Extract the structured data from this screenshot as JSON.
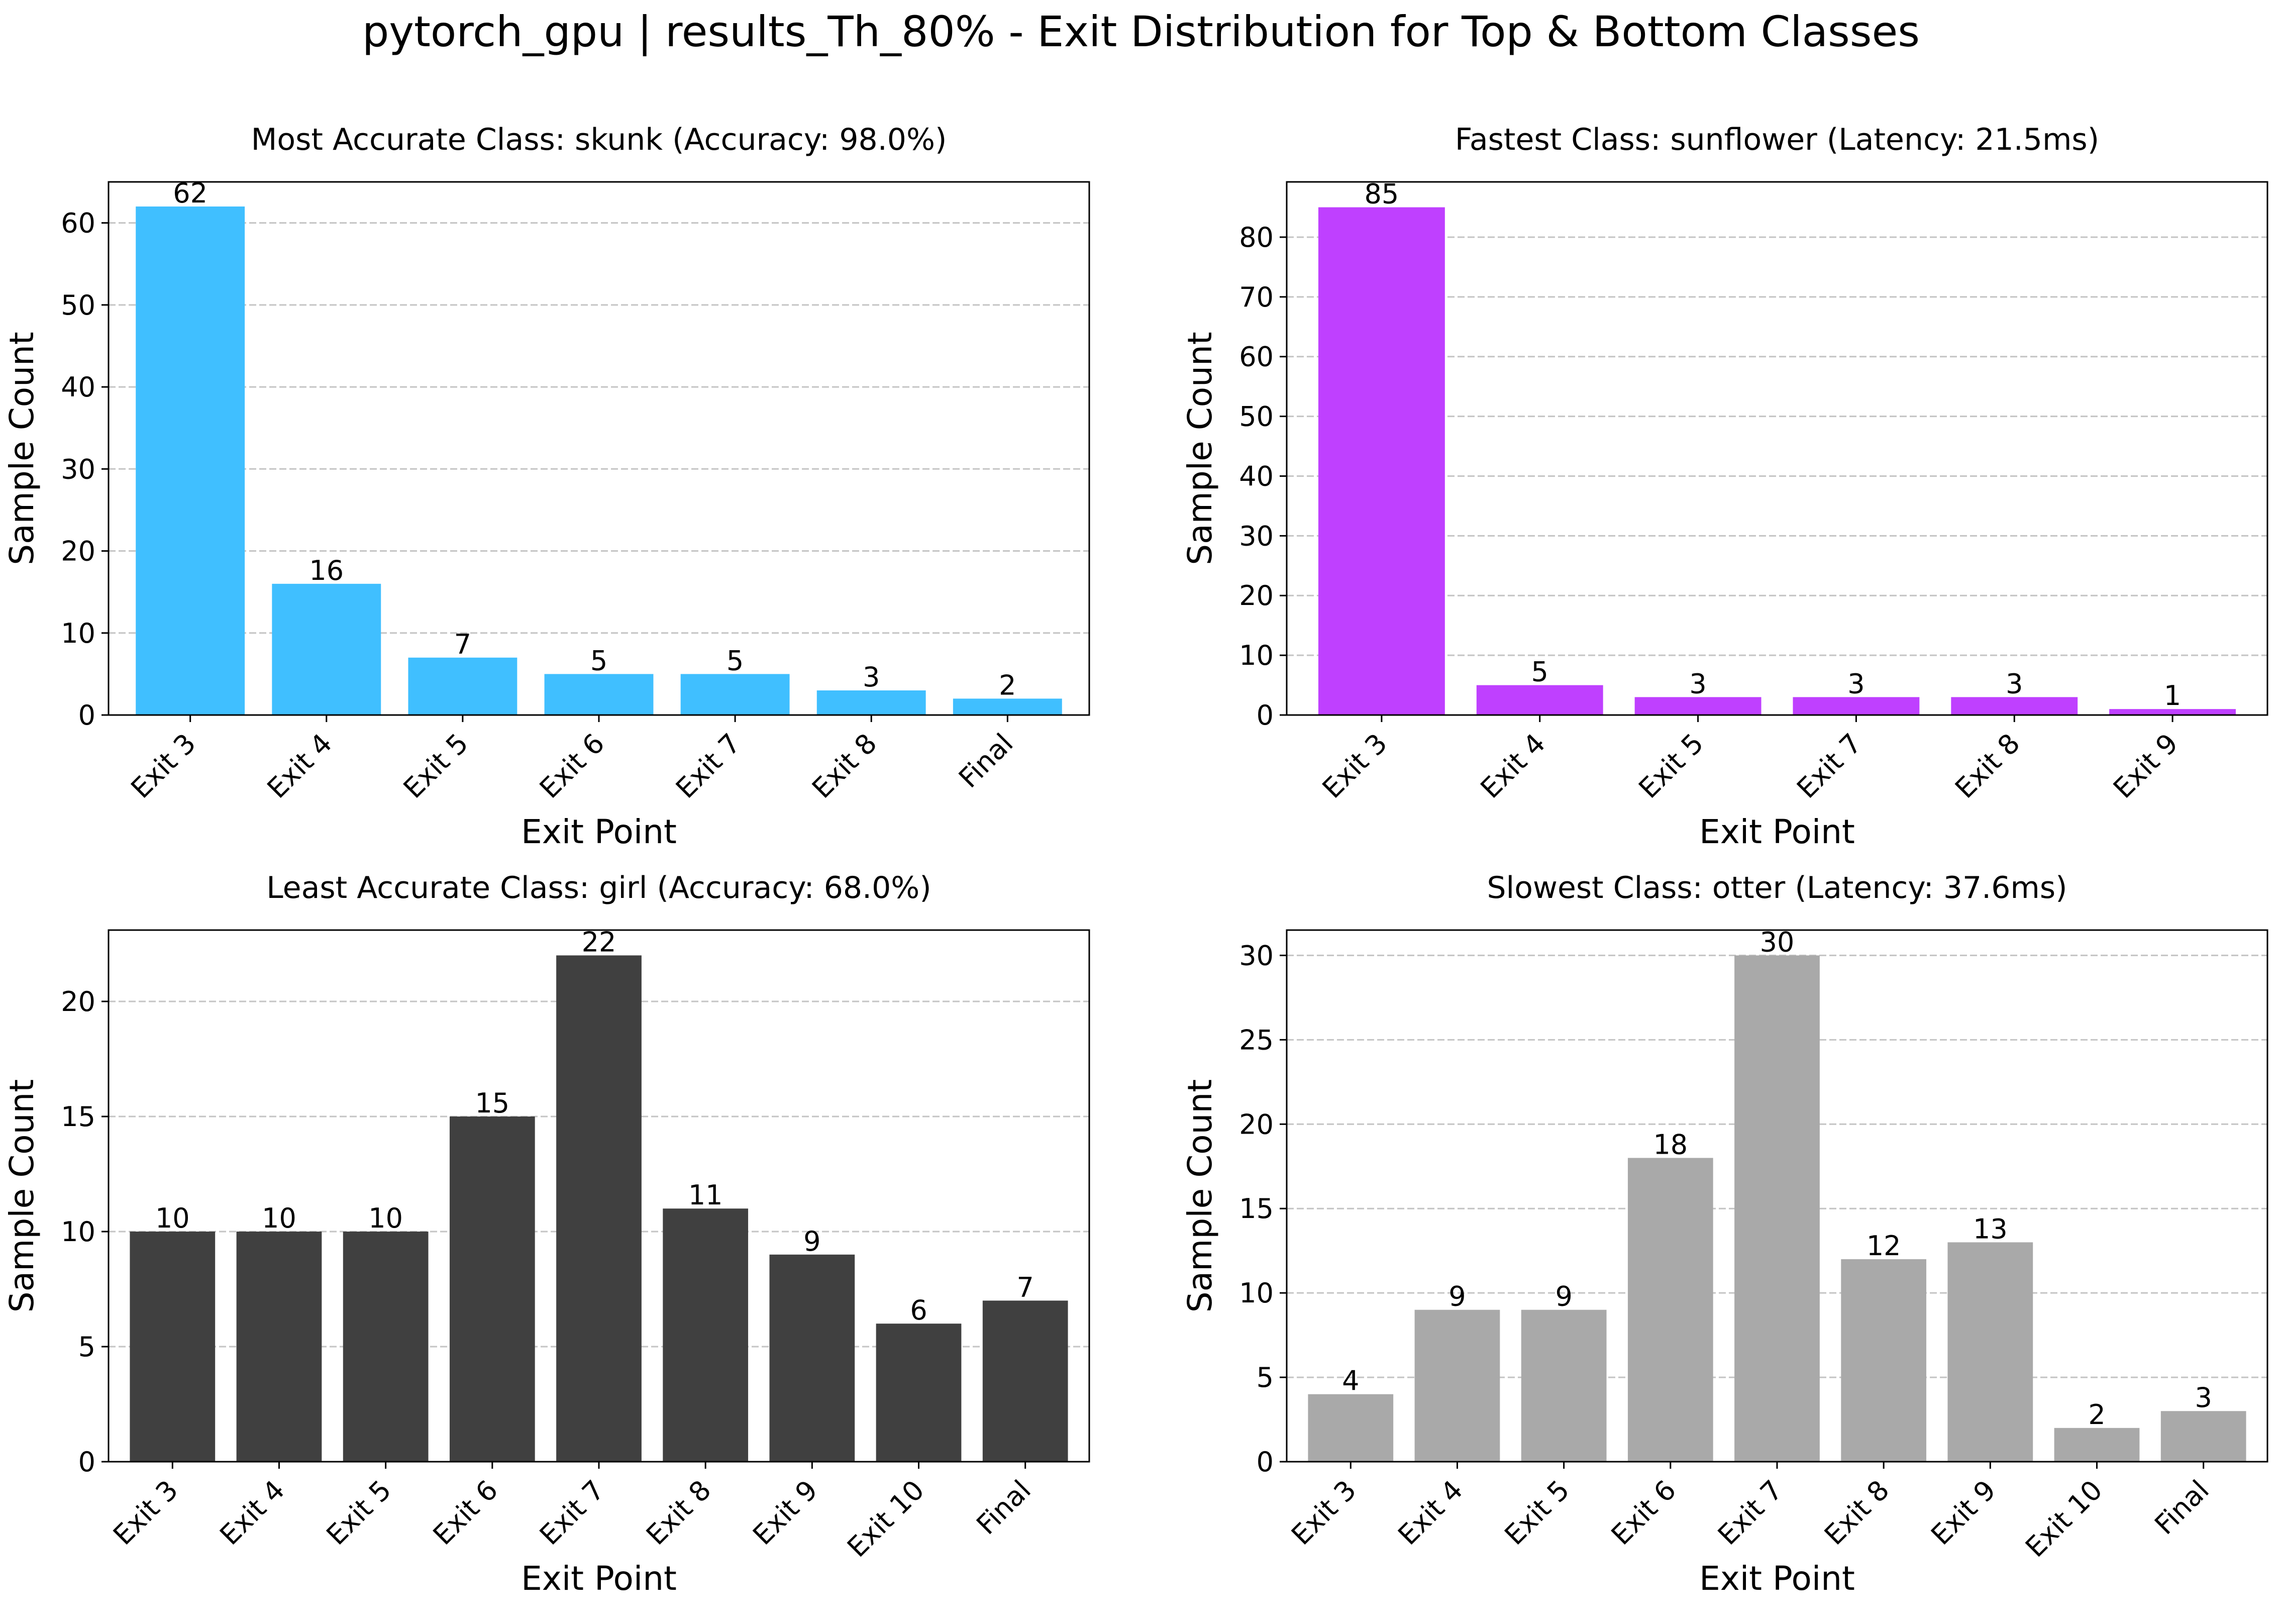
{
  "figure": {
    "suptitle": "pytorch_gpu | results_Th_80% - Exit Distribution for Top & Bottom Classes"
  },
  "chart_data": [
    {
      "type": "bar",
      "title": "Most Accurate Class: skunk (Accuracy: 98.0%)",
      "xlabel": "Exit Point",
      "ylabel": "Sample Count",
      "categories": [
        "Exit 3",
        "Exit 4",
        "Exit 5",
        "Exit 6",
        "Exit 7",
        "Exit 8",
        "Final"
      ],
      "values": [
        62,
        16,
        7,
        5,
        5,
        3,
        2
      ],
      "ylim": [
        0,
        65
      ],
      "yticks": [
        0,
        10,
        20,
        30,
        40,
        50,
        60
      ],
      "grid": "y-dashed",
      "color": "#40BFFF"
    },
    {
      "type": "bar",
      "title": "Fastest Class: sunflower (Latency: 21.5ms)",
      "xlabel": "Exit Point",
      "ylabel": "Sample Count",
      "categories": [
        "Exit 3",
        "Exit 4",
        "Exit 5",
        "Exit 7",
        "Exit 8",
        "Exit 9"
      ],
      "values": [
        85,
        5,
        3,
        3,
        3,
        1
      ],
      "ylim": [
        0,
        89.25
      ],
      "yticks": [
        0,
        10,
        20,
        30,
        40,
        50,
        60,
        70,
        80
      ],
      "grid": "y-dashed",
      "color": "#BF40FF"
    },
    {
      "type": "bar",
      "title": "Least Accurate Class: girl (Accuracy: 68.0%)",
      "xlabel": "Exit Point",
      "ylabel": "Sample Count",
      "categories": [
        "Exit 3",
        "Exit 4",
        "Exit 5",
        "Exit 6",
        "Exit 7",
        "Exit 8",
        "Exit 9",
        "Exit 10",
        "Final"
      ],
      "values": [
        10,
        10,
        10,
        15,
        22,
        11,
        9,
        6,
        7
      ],
      "ylim": [
        0,
        23.1
      ],
      "yticks": [
        0,
        5,
        10,
        15,
        20
      ],
      "grid": "y-dashed",
      "color": "#404040"
    },
    {
      "type": "bar",
      "title": "Slowest Class: otter (Latency: 37.6ms)",
      "xlabel": "Exit Point",
      "ylabel": "Sample Count",
      "categories": [
        "Exit 3",
        "Exit 4",
        "Exit 5",
        "Exit 6",
        "Exit 7",
        "Exit 8",
        "Exit 9",
        "Exit 10",
        "Final"
      ],
      "values": [
        4,
        9,
        9,
        18,
        30,
        12,
        13,
        2,
        3
      ],
      "ylim": [
        0,
        31.5
      ],
      "yticks": [
        0,
        5,
        10,
        15,
        20,
        25,
        30
      ],
      "grid": "y-dashed",
      "color": "#A9A9A9"
    }
  ]
}
